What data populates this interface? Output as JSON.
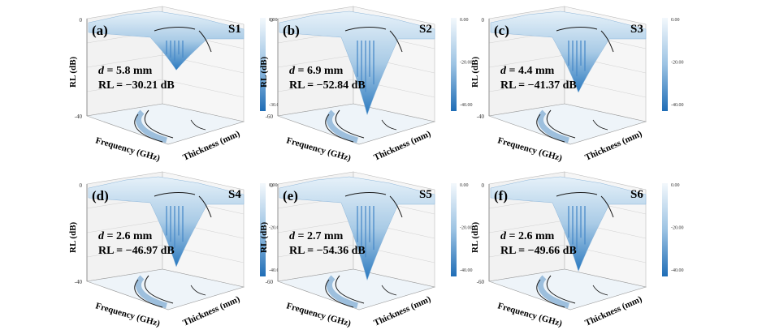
{
  "chart_data": [
    {
      "type": "surface3d",
      "panel": "(a)",
      "sample": "S1",
      "d_label": "d",
      "d_value": "= 5.8 mm",
      "rl_label": "RL = −30.21 dB",
      "colorbar_ticks": [
        "0.00",
        "-30.00"
      ],
      "zlabel": "RL (dB)",
      "xlabel": "Frequency (GHz)",
      "ylabel": "Thickness (mm)",
      "z_tick_top": "0",
      "z_tick_bottom": "-40"
    },
    {
      "type": "surface3d",
      "panel": "(b)",
      "sample": "S2",
      "d_label": "d",
      "d_value": "= 6.9 mm",
      "rl_label": "RL = −52.84 dB",
      "colorbar_ticks": [
        "0.00",
        "-20.00",
        "-40.00"
      ],
      "zlabel": "RL (dB)",
      "xlabel": "Frequency (GHz)",
      "ylabel": "Thickness (mm)",
      "z_tick_top": "0",
      "z_tick_bottom": "-60"
    },
    {
      "type": "surface3d",
      "panel": "(c)",
      "sample": "S3",
      "d_label": "d",
      "d_value": "= 4.4 mm",
      "rl_label": "RL = −41.37 dB",
      "colorbar_ticks": [
        "0.00",
        "-20.00",
        "-40.00"
      ],
      "zlabel": "RL (dB)",
      "xlabel": "Frequency (GHz)",
      "ylabel": "Thickness (mm)",
      "z_tick_top": "0",
      "z_tick_bottom": "-40"
    },
    {
      "type": "surface3d",
      "panel": "(d)",
      "sample": "S4",
      "d_label": "d",
      "d_value": "= 2.6 mm",
      "rl_label": "RL = −46.97 dB",
      "colorbar_ticks": [
        "0.00",
        "-20.00",
        "-40.00"
      ],
      "zlabel": "RL (dB)",
      "xlabel": "Frequency (GHz)",
      "ylabel": "Thickness (mm)",
      "z_tick_top": "0",
      "z_tick_bottom": "-40"
    },
    {
      "type": "surface3d",
      "panel": "(e)",
      "sample": "S5",
      "d_label": "d",
      "d_value": "= 2.7 mm",
      "rl_label": "RL = −54.36 dB",
      "colorbar_ticks": [
        "0.00",
        "-20.00",
        "-40.00"
      ],
      "zlabel": "RL (dB)",
      "xlabel": "Frequency (GHz)",
      "ylabel": "Thickness (mm)",
      "z_tick_top": "0",
      "z_tick_bottom": "-60"
    },
    {
      "type": "surface3d",
      "panel": "(f)",
      "sample": "S6",
      "d_label": "d",
      "d_value": "= 2.6 mm",
      "rl_label": "RL = −49.66 dB",
      "colorbar_ticks": [
        "0.00",
        "-20.00",
        "-40.00"
      ],
      "zlabel": "RL (dB)",
      "xlabel": "Frequency (GHz)",
      "ylabel": "Thickness (mm)",
      "z_tick_top": "0",
      "z_tick_bottom": "-60"
    }
  ],
  "colors": {
    "surface_light": "#e6f1f9",
    "surface_mid": "#a9cbe6",
    "surface_deep": "#2a79bf",
    "contour": "#1a1a1a",
    "pane": "#f2f2f2",
    "grid": "#d0d0d0"
  }
}
